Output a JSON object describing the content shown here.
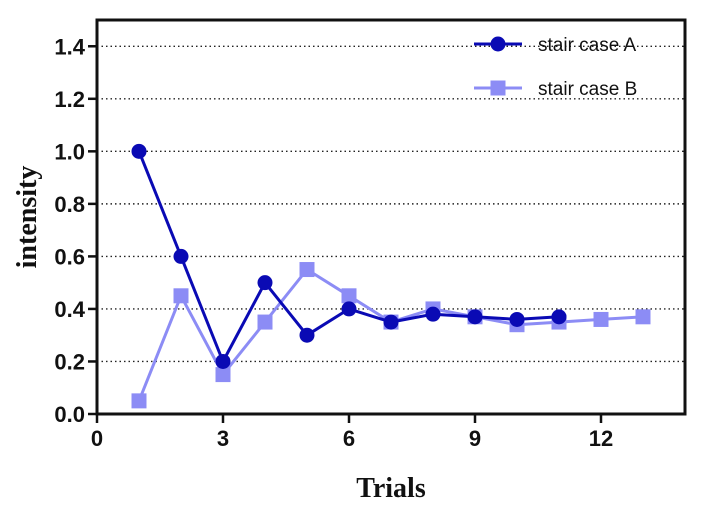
{
  "chart_data": {
    "type": "line",
    "xlabel": "Trials",
    "ylabel": "intensity",
    "xlim": [
      0,
      14
    ],
    "ylim": [
      0,
      1.5
    ],
    "xticks": [
      "0",
      "3",
      "6",
      "9",
      "12"
    ],
    "yticks": [
      "0.0",
      "0.2",
      "0.4",
      "0.6",
      "0.8",
      "1.0",
      "1.2",
      "1.4"
    ],
    "grid": "horizontal dotted",
    "legend_position": "top-right",
    "series": [
      {
        "name": "stair case A",
        "marker": "circle",
        "color": "#0A0AB4",
        "x": [
          1,
          2,
          3,
          4,
          5,
          6,
          7,
          8,
          9,
          10,
          11
        ],
        "y": [
          1.0,
          0.6,
          0.2,
          0.5,
          0.3,
          0.4,
          0.35,
          0.38,
          0.37,
          0.36,
          0.37
        ]
      },
      {
        "name": "stair case B",
        "marker": "square",
        "color": "#8C8CF5",
        "x": [
          1,
          2,
          3,
          4,
          5,
          6,
          7,
          8,
          9,
          10,
          11,
          12,
          13
        ],
        "y": [
          0.05,
          0.45,
          0.15,
          0.35,
          0.55,
          0.45,
          0.35,
          0.4,
          0.37,
          0.34,
          0.35,
          0.36,
          0.37
        ]
      }
    ]
  }
}
